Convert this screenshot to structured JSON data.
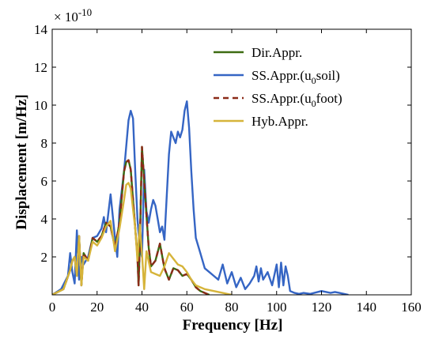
{
  "chart_data": {
    "type": "line",
    "title": "",
    "xlabel": "Frequency [Hz]",
    "ylabel": "Displacement [m/Hz]",
    "y_multiplier": "× 10",
    "y_multiplier_exp": "-10",
    "xlim": [
      0,
      160
    ],
    "ylim": [
      0,
      14
    ],
    "xticks": [
      0,
      20,
      40,
      60,
      80,
      100,
      120,
      140,
      160
    ],
    "yticks": [
      2,
      4,
      6,
      8,
      10,
      12,
      14
    ],
    "grid": false,
    "legend_position": "top-right",
    "series": [
      {
        "name": "Dir.Appr.",
        "color": "#3d6b12",
        "dash": "solid",
        "x": [
          0,
          5,
          8,
          9,
          10,
          11,
          12,
          13,
          14,
          16,
          18,
          20,
          22,
          24,
          26,
          28,
          30,
          32,
          33,
          34,
          35,
          36,
          37,
          38,
          38.5,
          39,
          40,
          41,
          42,
          43,
          44,
          46,
          48,
          50,
          52,
          54,
          56,
          58,
          60,
          62,
          64,
          66,
          70
        ],
        "y": [
          0,
          0.3,
          1.3,
          1.8,
          2.0,
          1.0,
          3.1,
          0.5,
          2.2,
          1.8,
          3.0,
          2.8,
          3.1,
          3.8,
          3.6,
          2.5,
          3.8,
          6.5,
          7.0,
          7.1,
          6.6,
          5.0,
          3.5,
          2.0,
          0.5,
          2.5,
          7.8,
          6.0,
          4.2,
          2.5,
          1.5,
          1.8,
          2.7,
          1.4,
          0.8,
          1.4,
          1.3,
          1.0,
          1.1,
          0.8,
          0.4,
          0.2,
          0
        ]
      },
      {
        "name": "SS.Appr.(u0soil)",
        "label_parts": [
          "SS.Appr.(u",
          "0",
          "soil)"
        ],
        "color": "#3565c4",
        "dash": "solid",
        "x": [
          0,
          4,
          7,
          8,
          9,
          10,
          11,
          12,
          13,
          14,
          16,
          18,
          20,
          22,
          23,
          24,
          26,
          28,
          29,
          30,
          32,
          34,
          35,
          36,
          37,
          38,
          39,
          40,
          41,
          42,
          43,
          44,
          45,
          46,
          47,
          48,
          49,
          50,
          52,
          53,
          54,
          55,
          56,
          57,
          58,
          59,
          60,
          61,
          62,
          63,
          64,
          66,
          68,
          70,
          72,
          74,
          76,
          78,
          80,
          82,
          84,
          86,
          88,
          90,
          91,
          92,
          93,
          94,
          96,
          98,
          100,
          101,
          102,
          103,
          104,
          105,
          106,
          108,
          110,
          112,
          115,
          120,
          124,
          126,
          128,
          130,
          132
        ],
        "y": [
          0,
          0.3,
          1.0,
          2.2,
          1.2,
          0.6,
          3.4,
          0.8,
          2.0,
          1.6,
          2.0,
          3.0,
          3.1,
          3.5,
          4.1,
          3.3,
          5.3,
          3.0,
          2.0,
          4.5,
          6.5,
          9.2,
          9.7,
          9.3,
          6.5,
          4.0,
          2.5,
          2.0,
          6.6,
          4.4,
          3.8,
          4.5,
          5.0,
          4.7,
          4.0,
          3.3,
          3.6,
          2.9,
          7.4,
          8.6,
          8.3,
          8.0,
          8.6,
          8.3,
          8.7,
          9.7,
          10.2,
          8.8,
          6.5,
          4.5,
          3.0,
          2.2,
          1.4,
          1.2,
          1.0,
          0.8,
          1.6,
          0.6,
          1.2,
          0.4,
          0.9,
          0.3,
          0.6,
          1.0,
          1.5,
          0.7,
          1.4,
          0.8,
          1.2,
          0.5,
          1.6,
          0.4,
          1.7,
          0.5,
          1.5,
          1.0,
          0.2,
          0.1,
          0.05,
          0.1,
          0.05,
          0.2,
          0.1,
          0.15,
          0.1,
          0.05,
          0
        ]
      },
      {
        "name": "SS.Appr.(u0foot)",
        "label_parts": [
          "SS.Appr.(u",
          "0",
          "foot)"
        ],
        "color": "#8b2a18",
        "dash": "dashed",
        "x": [
          0,
          5,
          8,
          9,
          10,
          11,
          12,
          13,
          14,
          16,
          18,
          20,
          22,
          24,
          26,
          28,
          30,
          32,
          33,
          34,
          35,
          36,
          37,
          38,
          38.5,
          39,
          40,
          41,
          42,
          43,
          44,
          46,
          48,
          50,
          52,
          54,
          56,
          58,
          60,
          62,
          64,
          66,
          70
        ],
        "y": [
          0,
          0.3,
          1.3,
          1.8,
          2.0,
          1.0,
          3.1,
          0.5,
          2.2,
          1.8,
          3.0,
          2.8,
          3.1,
          3.8,
          3.6,
          2.5,
          3.8,
          6.5,
          7.0,
          7.1,
          6.6,
          5.0,
          3.5,
          2.0,
          0.5,
          2.5,
          7.8,
          6.0,
          4.2,
          2.5,
          1.5,
          1.8,
          2.7,
          1.4,
          0.8,
          1.4,
          1.3,
          1.0,
          1.1,
          0.8,
          0.4,
          0.2,
          0
        ]
      },
      {
        "name": "Hyb.Appr.",
        "color": "#d6b43a",
        "dash": "solid",
        "x": [
          0,
          5,
          8,
          9,
          10,
          11,
          12,
          13,
          14,
          16,
          18,
          20,
          22,
          24,
          26,
          28,
          30,
          32,
          33,
          34,
          35,
          36,
          37,
          38,
          39,
          40,
          41,
          42,
          44,
          46,
          48,
          50,
          52,
          54,
          56,
          58,
          60,
          62,
          64,
          68,
          72,
          76,
          80
        ],
        "y": [
          0,
          0.3,
          1.3,
          1.8,
          2.0,
          1.0,
          3.1,
          0.5,
          2.0,
          1.8,
          2.8,
          2.6,
          3.0,
          3.6,
          3.9,
          2.3,
          3.5,
          5.0,
          5.8,
          5.9,
          5.6,
          4.5,
          3.5,
          1.8,
          3.7,
          2.2,
          0.3,
          2.3,
          1.2,
          1.1,
          1.0,
          1.5,
          2.2,
          1.9,
          1.6,
          1.5,
          1.2,
          0.8,
          0.5,
          0.3,
          0.2,
          0.1,
          0
        ]
      }
    ]
  }
}
